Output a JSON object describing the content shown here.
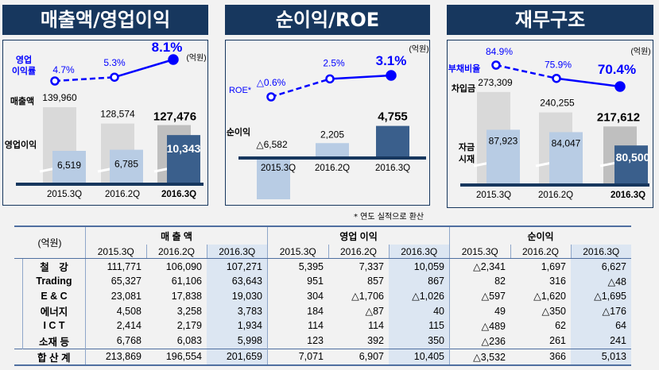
{
  "panels": [
    {
      "title": "매출액/영업이익",
      "unit": "(억원)",
      "line_label": [
        "영업",
        "이익률"
      ],
      "bar1_label": "매출액",
      "bar2_label": "영업이익"
    },
    {
      "title": "순이익/ROE",
      "unit": "(억원)",
      "line_label": [
        "ROE*"
      ],
      "bar1_label": "순이익"
    },
    {
      "title": "재무구조",
      "unit": "(억원)",
      "line_label": [
        "부채비율"
      ],
      "bar1_label": "차입금",
      "bar2_label": [
        "자금",
        "시재"
      ]
    }
  ],
  "note": "* 연도 실적으로 환산",
  "colors": {
    "header": "#17375e",
    "line": "#0000ff",
    "bar_light": "#b8cce4",
    "bar_dark": "#3a5f8c",
    "bar_gray": "#d9d9d9",
    "bar_gray_dark": "#bfbfbf"
  },
  "chart_data": [
    {
      "type": "bar+line",
      "title": "매출액/영업이익",
      "unit": "억원",
      "categories": [
        "2015.3Q",
        "2016.2Q",
        "2016.3Q"
      ],
      "series": [
        {
          "name": "매출액",
          "type": "bar",
          "values": [
            139960,
            128574,
            127476
          ],
          "labels": [
            "139,960",
            "128,574",
            "127,476"
          ]
        },
        {
          "name": "영업이익",
          "type": "bar",
          "values": [
            6519,
            6785,
            10343
          ],
          "labels": [
            "6,519",
            "6,785",
            "10,343"
          ]
        },
        {
          "name": "영업이익률",
          "type": "line",
          "values": [
            4.7,
            5.3,
            8.1
          ],
          "labels": [
            "4.7%",
            "5.3%",
            "8.1%"
          ]
        }
      ]
    },
    {
      "type": "bar+line",
      "title": "순이익/ROE",
      "unit": "억원",
      "categories": [
        "2015.3Q",
        "2016.2Q",
        "2016.3Q"
      ],
      "series": [
        {
          "name": "순이익",
          "type": "bar",
          "values": [
            -6582,
            2205,
            4755
          ],
          "labels": [
            "△6,582",
            "2,205",
            "4,755"
          ]
        },
        {
          "name": "ROE*",
          "type": "line",
          "values": [
            -0.6,
            2.5,
            3.1
          ],
          "labels": [
            "△0.6%",
            "2.5%",
            "3.1%"
          ]
        }
      ]
    },
    {
      "type": "bar+line",
      "title": "재무구조",
      "unit": "억원",
      "categories": [
        "2015.3Q",
        "2016.2Q",
        "2016.3Q"
      ],
      "series": [
        {
          "name": "차입금",
          "type": "bar",
          "values": [
            273309,
            240255,
            217612
          ],
          "labels": [
            "273,309",
            "240,255",
            "217,612"
          ]
        },
        {
          "name": "자금시재",
          "type": "bar",
          "values": [
            87923,
            84047,
            80500
          ],
          "labels": [
            "87,923",
            "84,047",
            "80,500"
          ]
        },
        {
          "name": "부채비율",
          "type": "line",
          "values": [
            84.9,
            75.9,
            70.4
          ],
          "labels": [
            "84.9%",
            "75.9%",
            "70.4%"
          ]
        }
      ]
    }
  ],
  "table": {
    "unit": "(억원)",
    "groups": [
      "매 출 액",
      "영업 이익",
      "순이익"
    ],
    "periods": [
      "2015.3Q",
      "2016.2Q",
      "2016.3Q"
    ],
    "rows": [
      {
        "label": "철　강",
        "values": [
          "111,771",
          "106,090",
          "107,271",
          "5,395",
          "7,337",
          "10,059",
          "△2,341",
          "1,697",
          "6,627"
        ]
      },
      {
        "label": "Trading",
        "values": [
          "65,327",
          "61,106",
          "63,643",
          "951",
          "857",
          "867",
          "82",
          "316",
          "△48"
        ]
      },
      {
        "label": "E & C",
        "values": [
          "23,081",
          "17,838",
          "19,030",
          "304",
          "△1,706",
          "△1,026",
          "△597",
          "△1,620",
          "△1,695"
        ]
      },
      {
        "label": "에너지",
        "values": [
          "4,508",
          "3,258",
          "3,783",
          "184",
          "△87",
          "40",
          "49",
          "△350",
          "△176"
        ]
      },
      {
        "label": "I C T",
        "values": [
          "2,414",
          "2,179",
          "1,934",
          "114",
          "114",
          "115",
          "△489",
          "62",
          "64"
        ]
      },
      {
        "label": "소재 등",
        "values": [
          "6,768",
          "6,083",
          "5,998",
          "123",
          "392",
          "350",
          "△236",
          "261",
          "241"
        ]
      }
    ],
    "total": {
      "label": "합 산 계",
      "values": [
        "213,869",
        "196,554",
        "201,659",
        "7,071",
        "6,907",
        "10,405",
        "△3,532",
        "366",
        "5,013"
      ]
    }
  }
}
